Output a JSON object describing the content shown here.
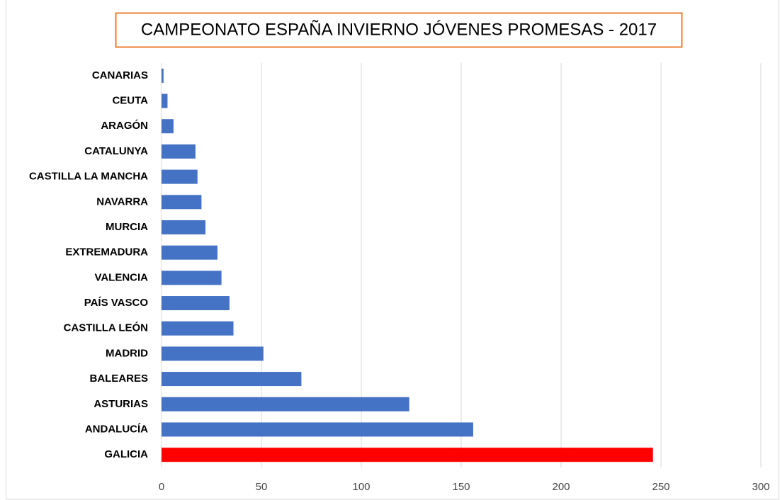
{
  "chart_data": {
    "type": "barh",
    "title": "CAMPEONATO ESPAÑA INVIERNO JÓVENES PROMESAS - 2017",
    "categories": [
      "CANARIAS",
      "CEUTA",
      "ARAGÓN",
      "CATALUNYA",
      "CASTILLA LA MANCHA",
      "NAVARRA",
      "MURCIA",
      "EXTREMADURA",
      "VALENCIA",
      "PAÍS VASCO",
      "CASTILLA LEÓN",
      "MADRID",
      "BALEARES",
      "ASTURIAS",
      "ANDALUCÍA",
      "GALICIA"
    ],
    "values": [
      1,
      3,
      6,
      17,
      18,
      20,
      22,
      28,
      30,
      34,
      36,
      51,
      70,
      124,
      156,
      246
    ],
    "colors": [
      "#4472c4",
      "#4472c4",
      "#4472c4",
      "#4472c4",
      "#4472c4",
      "#4472c4",
      "#4472c4",
      "#4472c4",
      "#4472c4",
      "#4472c4",
      "#4472c4",
      "#4472c4",
      "#4472c4",
      "#4472c4",
      "#4472c4",
      "#ff0000"
    ],
    "xlim": [
      0,
      300
    ],
    "xticks": [
      0,
      50,
      100,
      150,
      200,
      250,
      300
    ],
    "grid": true
  }
}
